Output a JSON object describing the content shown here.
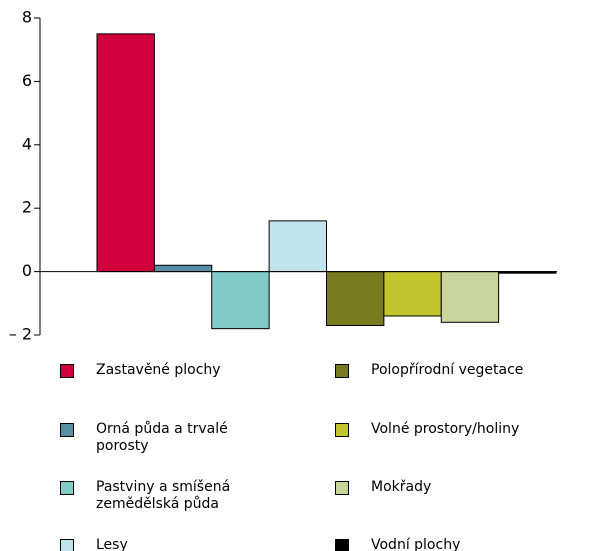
{
  "chart_data": {
    "type": "bar",
    "ylim": [
      -2,
      8
    ],
    "yticks": [
      {
        "value": -2,
        "label": "– 2"
      },
      0,
      2,
      4,
      6,
      8
    ],
    "series": [
      {
        "name": "Zastavěné plochy",
        "color": "#d0003c",
        "values": [
          7.5
        ]
      },
      {
        "name": "Orná půda a trvalé porosty",
        "color": "#5790a4",
        "values": [
          0.2
        ]
      },
      {
        "name": "Pastviny a smíšená zemědělská půda",
        "color": "#80cbc6",
        "values": [
          -1.8
        ]
      },
      {
        "name": "Lesy",
        "color": "#c0e4eb",
        "values": [
          1.6
        ]
      },
      {
        "name": "Polopřírodní vegetace",
        "color": "#7a7b21",
        "values": [
          -1.7
        ]
      },
      {
        "name": "Volné prostory/holiny",
        "color": "#c1c62d",
        "values": [
          -1.4
        ]
      },
      {
        "name": "Mokřady",
        "color": "#c9d49b",
        "values": [
          -1.6
        ]
      },
      {
        "name": "Vodní plochy",
        "color": "#000000",
        "values": [
          -0.05
        ]
      }
    ]
  }
}
